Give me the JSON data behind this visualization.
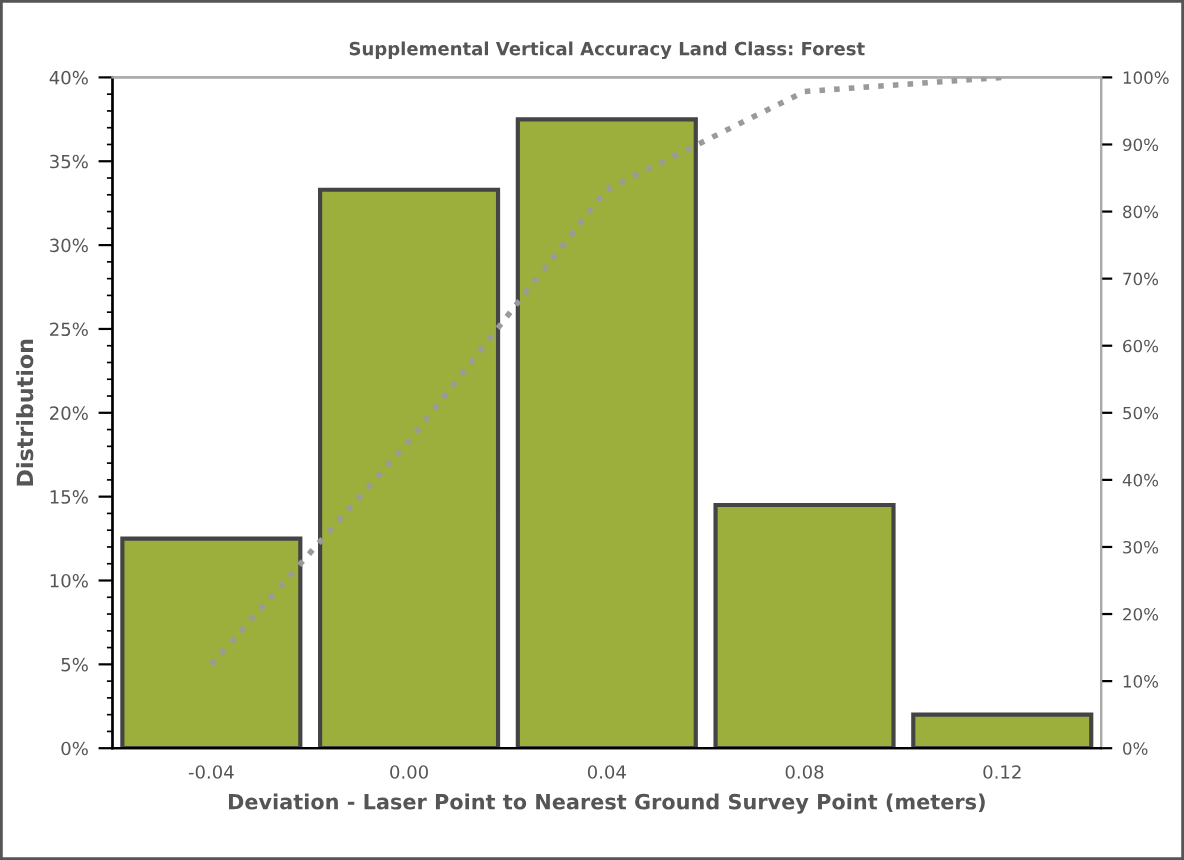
{
  "chart_data": {
    "type": "bar",
    "title": "Supplemental Vertical Accuracy Land Class: Forest",
    "xlabel": "Deviation - Laser Point to Nearest Ground Survey Point (meters)",
    "ylabel": "Distribution",
    "categories": [
      "-0.04",
      "0.00",
      "0.04",
      "0.08",
      "0.12"
    ],
    "series": [
      {
        "color": "#9caf3c",
        "values": [
          12.5,
          33.3,
          37.5,
          14.5,
          2.0
        ]
      },
      {
        "type": "line",
        "axis": "y2",
        "color": "#9a9a9a",
        "line_style": "dotted",
        "marker": "none",
        "values": [
          12.5,
          45.8,
          83.3,
          97.9,
          100
        ]
      }
    ],
    "ylim": [
      0,
      40
    ],
    "yticks": [
      {
        "value": 0,
        "label": "0%"
      },
      {
        "value": 5,
        "label": "5%"
      },
      {
        "value": 10,
        "label": "10%"
      },
      {
        "value": 15,
        "label": "15%"
      },
      {
        "value": 20,
        "label": "20%"
      },
      {
        "value": 25,
        "label": "25%"
      },
      {
        "value": 30,
        "label": "30%"
      },
      {
        "value": 35,
        "label": "35%"
      },
      {
        "value": 40,
        "label": "40%"
      }
    ],
    "y2lim": [
      0,
      100
    ],
    "y2ticks": [
      {
        "value": 0,
        "label": "0%"
      },
      {
        "value": 10,
        "label": "10%"
      },
      {
        "value": 20,
        "label": "20%"
      },
      {
        "value": 30,
        "label": "30%"
      },
      {
        "value": 40,
        "label": "40%"
      },
      {
        "value": 50,
        "label": "50%"
      },
      {
        "value": 60,
        "label": "60%"
      },
      {
        "value": 70,
        "label": "70%"
      },
      {
        "value": 80,
        "label": "80%"
      },
      {
        "value": 90,
        "label": "90%"
      },
      {
        "value": 100,
        "label": "100%"
      }
    ],
    "grid": false,
    "legend": false
  }
}
